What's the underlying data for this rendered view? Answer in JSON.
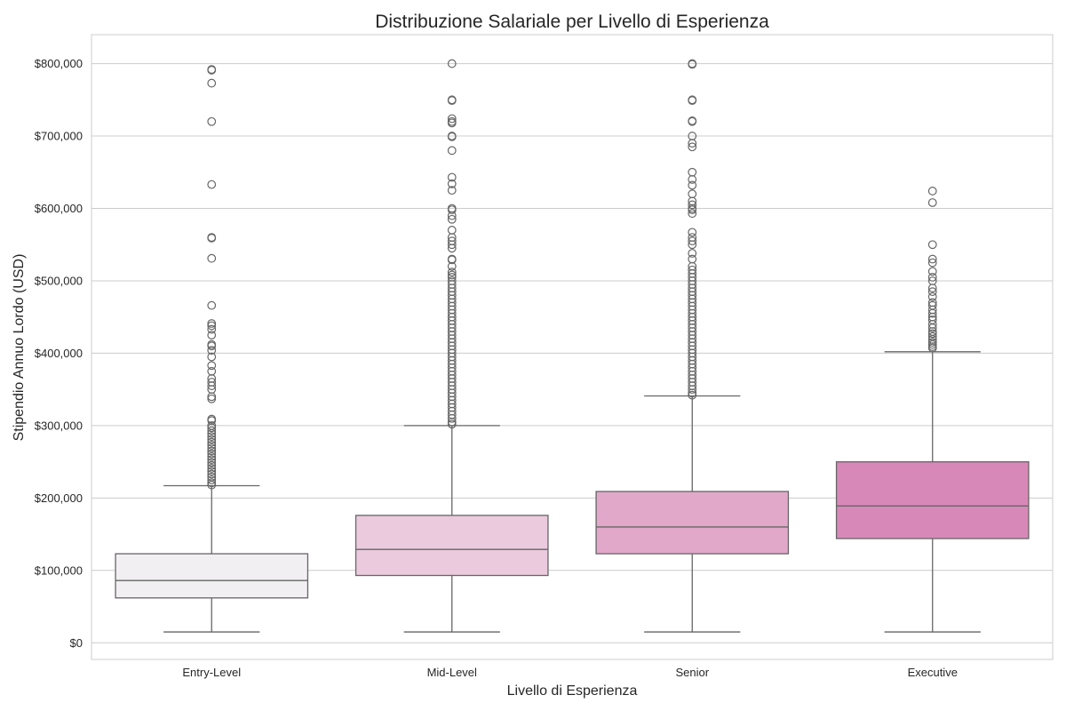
{
  "chart_data": {
    "type": "box",
    "title": "Distribuzione Salariale per Livello di Esperienza",
    "xlabel": "Livello di Esperienza",
    "ylabel": "Stipendio Annuo Lordo (USD)",
    "ylim": [
      -23000,
      840000
    ],
    "yticks": [
      0,
      100000,
      200000,
      300000,
      400000,
      500000,
      600000,
      700000,
      800000
    ],
    "ytick_labels": [
      "$0",
      "$100,000",
      "$200,000",
      "$300,000",
      "$400,000",
      "$500,000",
      "$600,000",
      "$700,000",
      "$800,000"
    ],
    "grid": true,
    "categories": [
      "Entry-Level",
      "Mid-Level",
      "Senior",
      "Executive"
    ],
    "colors": [
      "#f2eff2",
      "#ebcade",
      "#e1a8ca",
      "#d888b8"
    ],
    "boxes": [
      {
        "category": "Entry-Level",
        "whisker_low": 15000,
        "q1": 62000,
        "median": 86000,
        "q3": 123000,
        "whisker_high": 217000,
        "outliers": [
          792000,
          791000,
          773000,
          720000,
          633000,
          560000,
          559000,
          531000,
          466000,
          441000,
          438000,
          433000,
          425000,
          412000,
          410000,
          404000,
          395000,
          383000,
          375000,
          365000,
          360000,
          355000,
          350000,
          340000,
          337000,
          309000,
          307000,
          300000,
          297000,
          293000,
          289000,
          285000,
          281000,
          277000,
          273000,
          269000,
          265000,
          261000,
          257000,
          253000,
          249000,
          245000,
          241000,
          237000,
          233000,
          229000,
          225000,
          221000,
          218000
        ]
      },
      {
        "category": "Mid-Level",
        "whisker_low": 15000,
        "q1": 93000,
        "median": 129000,
        "q3": 176000,
        "whisker_high": 300000,
        "outliers": [
          800000,
          750000,
          749000,
          724000,
          720000,
          718000,
          700000,
          699000,
          680000,
          643000,
          634000,
          625000,
          600000,
          598000,
          590000,
          585000,
          570000,
          560000,
          555000,
          550000,
          545000,
          530000,
          529000,
          520000,
          512000,
          508000,
          505000,
          500000,
          495000,
          490000,
          485000,
          480000,
          475000,
          470000,
          465000,
          460000,
          455000,
          450000,
          445000,
          440000,
          435000,
          430000,
          425000,
          420000,
          415000,
          410000,
          405000,
          400000,
          395000,
          390000,
          385000,
          380000,
          375000,
          370000,
          365000,
          360000,
          355000,
          350000,
          345000,
          340000,
          335000,
          330000,
          325000,
          320000,
          315000,
          310000,
          305000,
          302000
        ]
      },
      {
        "category": "Senior",
        "whisker_low": 15000,
        "q1": 123000,
        "median": 160000,
        "q3": 209000,
        "whisker_high": 341000,
        "outliers": [
          800000,
          799000,
          750000,
          749000,
          721000,
          720000,
          700000,
          690000,
          685000,
          650000,
          640000,
          632000,
          620000,
          610000,
          605000,
          600000,
          598000,
          593000,
          567000,
          560000,
          555000,
          550000,
          538000,
          530000,
          520000,
          515000,
          510000,
          505000,
          500000,
          495000,
          490000,
          485000,
          480000,
          475000,
          470000,
          465000,
          460000,
          455000,
          450000,
          445000,
          440000,
          435000,
          430000,
          425000,
          420000,
          415000,
          410000,
          405000,
          400000,
          395000,
          390000,
          385000,
          380000,
          375000,
          370000,
          365000,
          360000,
          355000,
          350000,
          345000,
          342000
        ]
      },
      {
        "category": "Executive",
        "whisker_low": 15000,
        "q1": 144000,
        "median": 189000,
        "q3": 250000,
        "whisker_high": 402000,
        "outliers": [
          624000,
          608000,
          550000,
          530000,
          525000,
          513000,
          505000,
          500000,
          490000,
          485000,
          478000,
          470000,
          466000,
          460000,
          455000,
          450000,
          446000,
          440000,
          435000,
          430000,
          427000,
          423000,
          419000,
          415000,
          412000,
          409000,
          407000
        ]
      }
    ]
  }
}
